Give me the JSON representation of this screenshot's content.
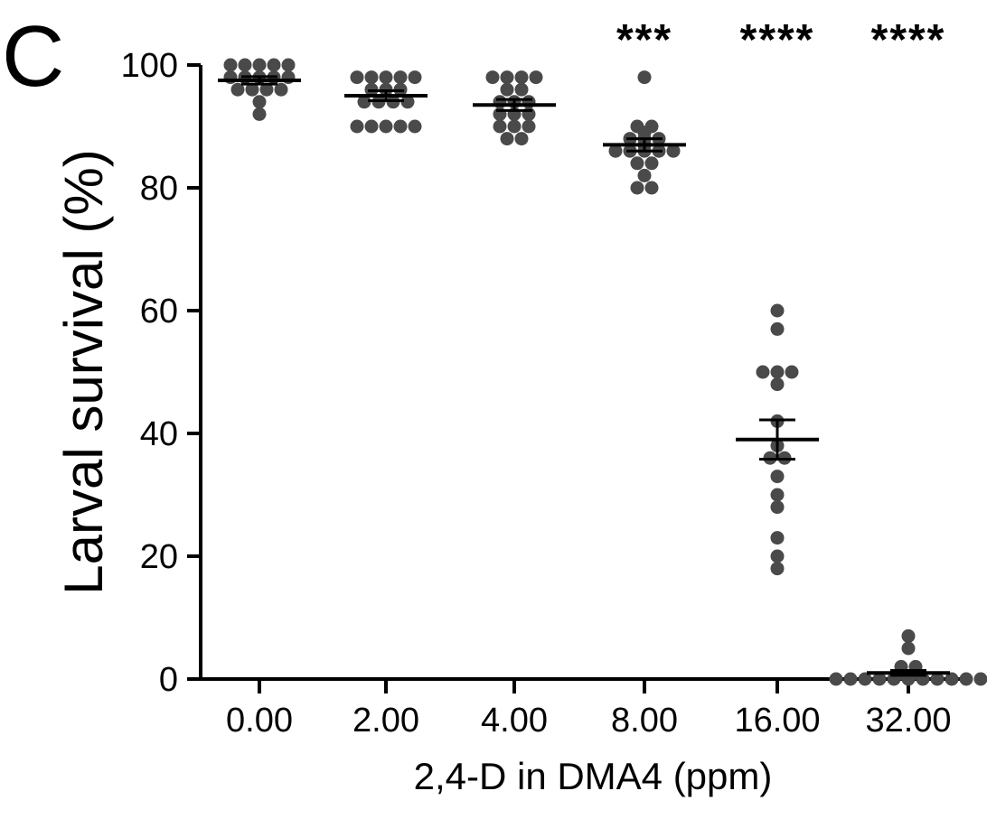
{
  "chart_data": {
    "type": "scatter",
    "panel_label": "C",
    "xlabel": "2,4-D in DMA4 (ppm)",
    "ylabel": "Larval survival (%)",
    "ylim": [
      0,
      100
    ],
    "yticks": [
      0,
      20,
      40,
      60,
      80,
      100
    ],
    "categories": [
      "0.00",
      "2.00",
      "4.00",
      "8.00",
      "16.00",
      "32.00"
    ],
    "groups": [
      {
        "category": "0.00",
        "significance": "",
        "mean": 97.5,
        "sem": 0.6,
        "points": [
          100,
          100,
          100,
          100,
          100,
          98,
          98,
          98,
          98,
          98,
          96,
          96,
          96,
          96,
          94,
          92
        ]
      },
      {
        "category": "2.00",
        "significance": "",
        "mean": 95,
        "sem": 0.8,
        "points": [
          98,
          98,
          98,
          98,
          98,
          96,
          96,
          96,
          94,
          94,
          94,
          94,
          90,
          90,
          90,
          90,
          90
        ]
      },
      {
        "category": "4.00",
        "significance": "",
        "mean": 93.5,
        "sem": 0.9,
        "points": [
          98,
          98,
          98,
          98,
          96,
          96,
          94,
          94,
          94,
          92,
          92,
          92,
          90,
          90,
          90,
          88,
          88
        ]
      },
      {
        "category": "8.00",
        "significance": "***",
        "mean": 87,
        "sem": 1.0,
        "points": [
          98,
          90,
          90,
          89,
          88,
          88,
          88,
          87,
          86,
          86,
          86,
          86,
          86,
          84,
          84,
          82,
          80,
          80
        ]
      },
      {
        "category": "16.00",
        "significance": "****",
        "mean": 39,
        "sem": 3.2,
        "points": [
          60,
          57,
          50,
          50,
          50,
          48,
          42,
          38,
          36,
          36,
          33,
          30,
          28,
          23,
          20,
          18
        ]
      },
      {
        "category": "32.00",
        "significance": "****",
        "mean": 1,
        "sem": 0.4,
        "points": [
          7,
          5,
          2,
          2,
          1,
          1,
          0,
          0,
          0,
          0,
          0,
          0,
          0,
          0,
          0,
          0,
          0
        ]
      }
    ],
    "dot_color": "#4a4a4a",
    "mean_line_color": "#000000",
    "grid": false,
    "legend": "none"
  }
}
